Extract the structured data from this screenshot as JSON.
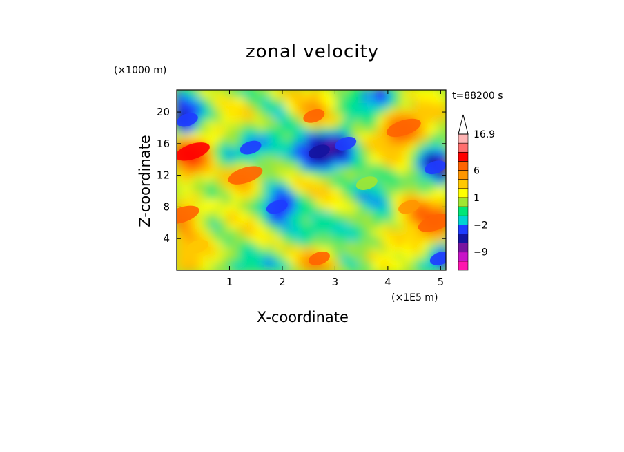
{
  "chart_data": {
    "type": "heatmap",
    "title": "zonal velocity",
    "xlabel": "X-coordinate",
    "ylabel": "Z-coordinate",
    "x_unit": "(×1E5 m)",
    "y_unit": "(×1000 m)",
    "time_label": "t=88200 s",
    "xlim": [
      0.0,
      5.1
    ],
    "ylim": [
      0.0,
      22.8
    ],
    "xticks": [
      1,
      2,
      3,
      4,
      5
    ],
    "yticks": [
      4,
      8,
      12,
      16,
      20
    ],
    "colorbar": {
      "levels_bottom_to_top": [
        "#ff14ae",
        "#c814c8",
        "#7814a0",
        "#1414a0",
        "#1e3cff",
        "#00d2d2",
        "#00e678",
        "#a0e632",
        "#ffff00",
        "#ffc800",
        "#ff9600",
        "#ff6400",
        "#ff0000",
        "#ff6e6e",
        "#ffb4b4"
      ],
      "arrow_color": "#ffffff",
      "tick_labels": [
        {
          "label": "16.9",
          "value": 16.9
        },
        {
          "label": "6",
          "value": 6
        },
        {
          "label": "1",
          "value": 1
        },
        {
          "label": "−2",
          "value": -2
        },
        {
          "label": "−9",
          "value": -9
        }
      ]
    },
    "field_features": [
      {
        "x": 0.3,
        "z": 15.0,
        "value": 9
      },
      {
        "x": 0.1,
        "z": 7.0,
        "value": 8
      },
      {
        "x": 0.2,
        "z": 19.0,
        "value": -4
      },
      {
        "x": 1.3,
        "z": 12.0,
        "value": 7
      },
      {
        "x": 1.4,
        "z": 15.5,
        "value": -3
      },
      {
        "x": 1.9,
        "z": 8.0,
        "value": -4
      },
      {
        "x": 2.6,
        "z": 19.5,
        "value": 6
      },
      {
        "x": 2.7,
        "z": 15.0,
        "value": -5
      },
      {
        "x": 3.2,
        "z": 16.0,
        "value": -3
      },
      {
        "x": 2.7,
        "z": 1.5,
        "value": 6
      },
      {
        "x": 4.3,
        "z": 18.0,
        "value": 8
      },
      {
        "x": 4.4,
        "z": 8.0,
        "value": 5
      },
      {
        "x": 4.9,
        "z": 6.0,
        "value": 8
      },
      {
        "x": 4.9,
        "z": 13.0,
        "value": -3
      },
      {
        "x": 5.0,
        "z": 1.5,
        "value": -3
      },
      {
        "x": 0.4,
        "z": 3.0,
        "value": 2
      },
      {
        "x": 3.6,
        "z": 11.0,
        "value": 0
      }
    ]
  }
}
